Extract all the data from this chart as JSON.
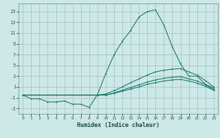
{
  "xlabel": "Humidex (Indice chaleur)",
  "bg_color": "#cde8e5",
  "grid_color": "#a0c8c5",
  "line_color": "#1a7a6e",
  "xlim": [
    -0.5,
    23.5
  ],
  "ylim": [
    -4.0,
    16.5
  ],
  "yticks": [
    -3,
    -1,
    1,
    3,
    5,
    7,
    9,
    11,
    13,
    15
  ],
  "xticks": [
    0,
    1,
    2,
    3,
    4,
    5,
    6,
    7,
    8,
    9,
    10,
    11,
    12,
    13,
    14,
    15,
    16,
    17,
    18,
    19,
    20,
    21,
    22,
    23
  ],
  "line1_x": [
    0,
    1,
    2,
    3,
    4,
    5,
    6,
    7,
    8,
    9,
    10,
    11,
    12,
    13,
    14,
    15,
    16,
    17,
    18,
    19,
    20,
    21,
    22,
    23
  ],
  "line1_y": [
    -0.5,
    -1.2,
    -1.2,
    -1.8,
    -1.8,
    -1.6,
    -2.2,
    -2.2,
    -2.8,
    -0.4,
    3.5,
    7.0,
    9.5,
    11.5,
    14.0,
    15.0,
    15.3,
    12.5,
    8.5,
    5.3,
    3.0,
    3.0,
    1.5,
    0.8
  ],
  "line2_x": [
    0,
    9,
    10,
    11,
    12,
    13,
    14,
    15,
    16,
    17,
    18,
    19,
    20,
    21,
    22,
    23
  ],
  "line2_y": [
    -0.5,
    -0.5,
    -0.3,
    0.3,
    1.0,
    1.8,
    2.5,
    3.2,
    3.8,
    4.1,
    4.3,
    4.4,
    3.8,
    3.2,
    2.2,
    1.0
  ],
  "line3_x": [
    0,
    9,
    10,
    11,
    12,
    13,
    14,
    15,
    16,
    17,
    18,
    19,
    20,
    21,
    22,
    23
  ],
  "line3_y": [
    -0.5,
    -0.5,
    -0.5,
    -0.1,
    0.4,
    0.9,
    1.4,
    1.9,
    2.3,
    2.6,
    2.8,
    2.9,
    2.5,
    2.1,
    1.4,
    0.5
  ],
  "line4_x": [
    0,
    9,
    10,
    11,
    12,
    13,
    14,
    15,
    16,
    17,
    18,
    19,
    20,
    21,
    22,
    23
  ],
  "line4_y": [
    -0.5,
    -0.5,
    -0.5,
    -0.2,
    0.2,
    0.6,
    1.0,
    1.5,
    1.8,
    2.1,
    2.3,
    2.4,
    2.1,
    1.7,
    1.1,
    0.4
  ]
}
